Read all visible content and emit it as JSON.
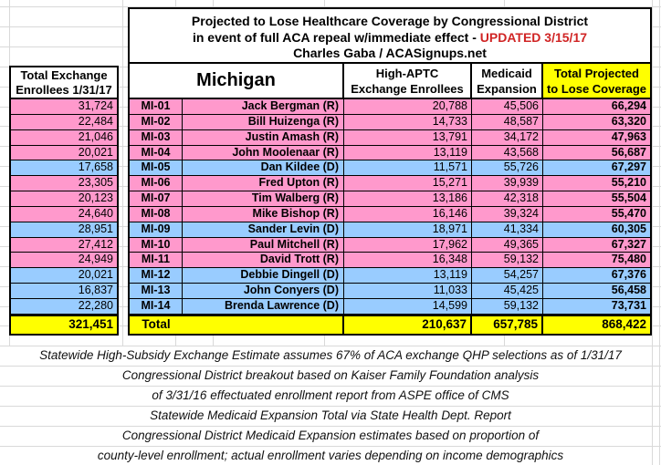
{
  "title": {
    "line1": "Projected to Lose Healthcare Coverage by Congressional District",
    "line2_black": "in event of full ACA repeal w/immediate effect - ",
    "line2_red": "UPDATED 3/15/17",
    "line3": "Charles Gaba / ACASignups.net"
  },
  "left_table": {
    "header_line1": "Total Exchange",
    "header_line2": "Enrollees 1/31/17"
  },
  "columns": {
    "state_label": "Michigan",
    "aptc_line1": "High-APTC",
    "aptc_line2": "Exchange Enrollees",
    "medicaid_line1": "Medicaid",
    "medicaid_line2": "Expansion",
    "total_line1": "Total Projected",
    "total_line2": "to Lose Coverage"
  },
  "rows": [
    {
      "district": "MI-01",
      "rep": "Jack Bergman (R)",
      "party": "R",
      "exchange": "31,724",
      "aptc": "20,788",
      "medicaid": "45,506",
      "total": "66,294"
    },
    {
      "district": "MI-02",
      "rep": "Bill Huizenga (R)",
      "party": "R",
      "exchange": "22,484",
      "aptc": "14,733",
      "medicaid": "48,587",
      "total": "63,320"
    },
    {
      "district": "MI-03",
      "rep": "Justin Amash (R)",
      "party": "R",
      "exchange": "21,046",
      "aptc": "13,791",
      "medicaid": "34,172",
      "total": "47,963"
    },
    {
      "district": "MI-04",
      "rep": "John Moolenaar (R)",
      "party": "R",
      "exchange": "20,021",
      "aptc": "13,119",
      "medicaid": "43,568",
      "total": "56,687"
    },
    {
      "district": "MI-05",
      "rep": "Dan Kildee (D)",
      "party": "D",
      "exchange": "17,658",
      "aptc": "11,571",
      "medicaid": "55,726",
      "total": "67,297"
    },
    {
      "district": "MI-06",
      "rep": "Fred Upton (R)",
      "party": "R",
      "exchange": "23,305",
      "aptc": "15,271",
      "medicaid": "39,939",
      "total": "55,210"
    },
    {
      "district": "MI-07",
      "rep": "Tim Walberg (R)",
      "party": "R",
      "exchange": "20,123",
      "aptc": "13,186",
      "medicaid": "42,318",
      "total": "55,504"
    },
    {
      "district": "MI-08",
      "rep": "Mike Bishop (R)",
      "party": "R",
      "exchange": "24,640",
      "aptc": "16,146",
      "medicaid": "39,324",
      "total": "55,470"
    },
    {
      "district": "MI-09",
      "rep": "Sander Levin (D)",
      "party": "D",
      "exchange": "28,951",
      "aptc": "18,971",
      "medicaid": "41,334",
      "total": "60,305"
    },
    {
      "district": "MI-10",
      "rep": "Paul Mitchell (R)",
      "party": "R",
      "exchange": "27,412",
      "aptc": "17,962",
      "medicaid": "49,365",
      "total": "67,327"
    },
    {
      "district": "MI-11",
      "rep": "David Trott (R)",
      "party": "R",
      "exchange": "24,949",
      "aptc": "16,348",
      "medicaid": "59,132",
      "total": "75,480"
    },
    {
      "district": "MI-12",
      "rep": "Debbie Dingell (D)",
      "party": "D",
      "exchange": "20,021",
      "aptc": "13,119",
      "medicaid": "54,257",
      "total": "67,376"
    },
    {
      "district": "MI-13",
      "rep": "John Conyers (D)",
      "party": "D",
      "exchange": "16,837",
      "aptc": "11,033",
      "medicaid": "45,425",
      "total": "56,458"
    },
    {
      "district": "MI-14",
      "rep": "Brenda Lawrence (D)",
      "party": "D",
      "exchange": "22,280",
      "aptc": "14,599",
      "medicaid": "59,132",
      "total": "73,731"
    }
  ],
  "totals": {
    "label": "Total",
    "exchange": "321,451",
    "aptc": "210,637",
    "medicaid": "657,785",
    "total": "868,422"
  },
  "notes": [
    "Statewide High-Subsidy Exchange Estimate assumes 67% of ACA exchange QHP selections as of 1/31/17",
    "Congressional District breakout based on Kaiser Family Foundation analysis",
    "of 3/31/16 effectuated enrollment report from ASPE office of CMS",
    "Statewide Medicaid Expansion Total via State Health Dept. Report",
    "Congressional District Medicaid Expansion estimates based on proportion of",
    "county-level enrollment; actual enrollment varies depending on income demographics"
  ],
  "colors": {
    "republican_row": "#ff99cc",
    "democrat_row": "#99ccff",
    "total_highlight": "#ffff00",
    "updated_text": "#d02424",
    "gridline": "#d9d9d9"
  }
}
